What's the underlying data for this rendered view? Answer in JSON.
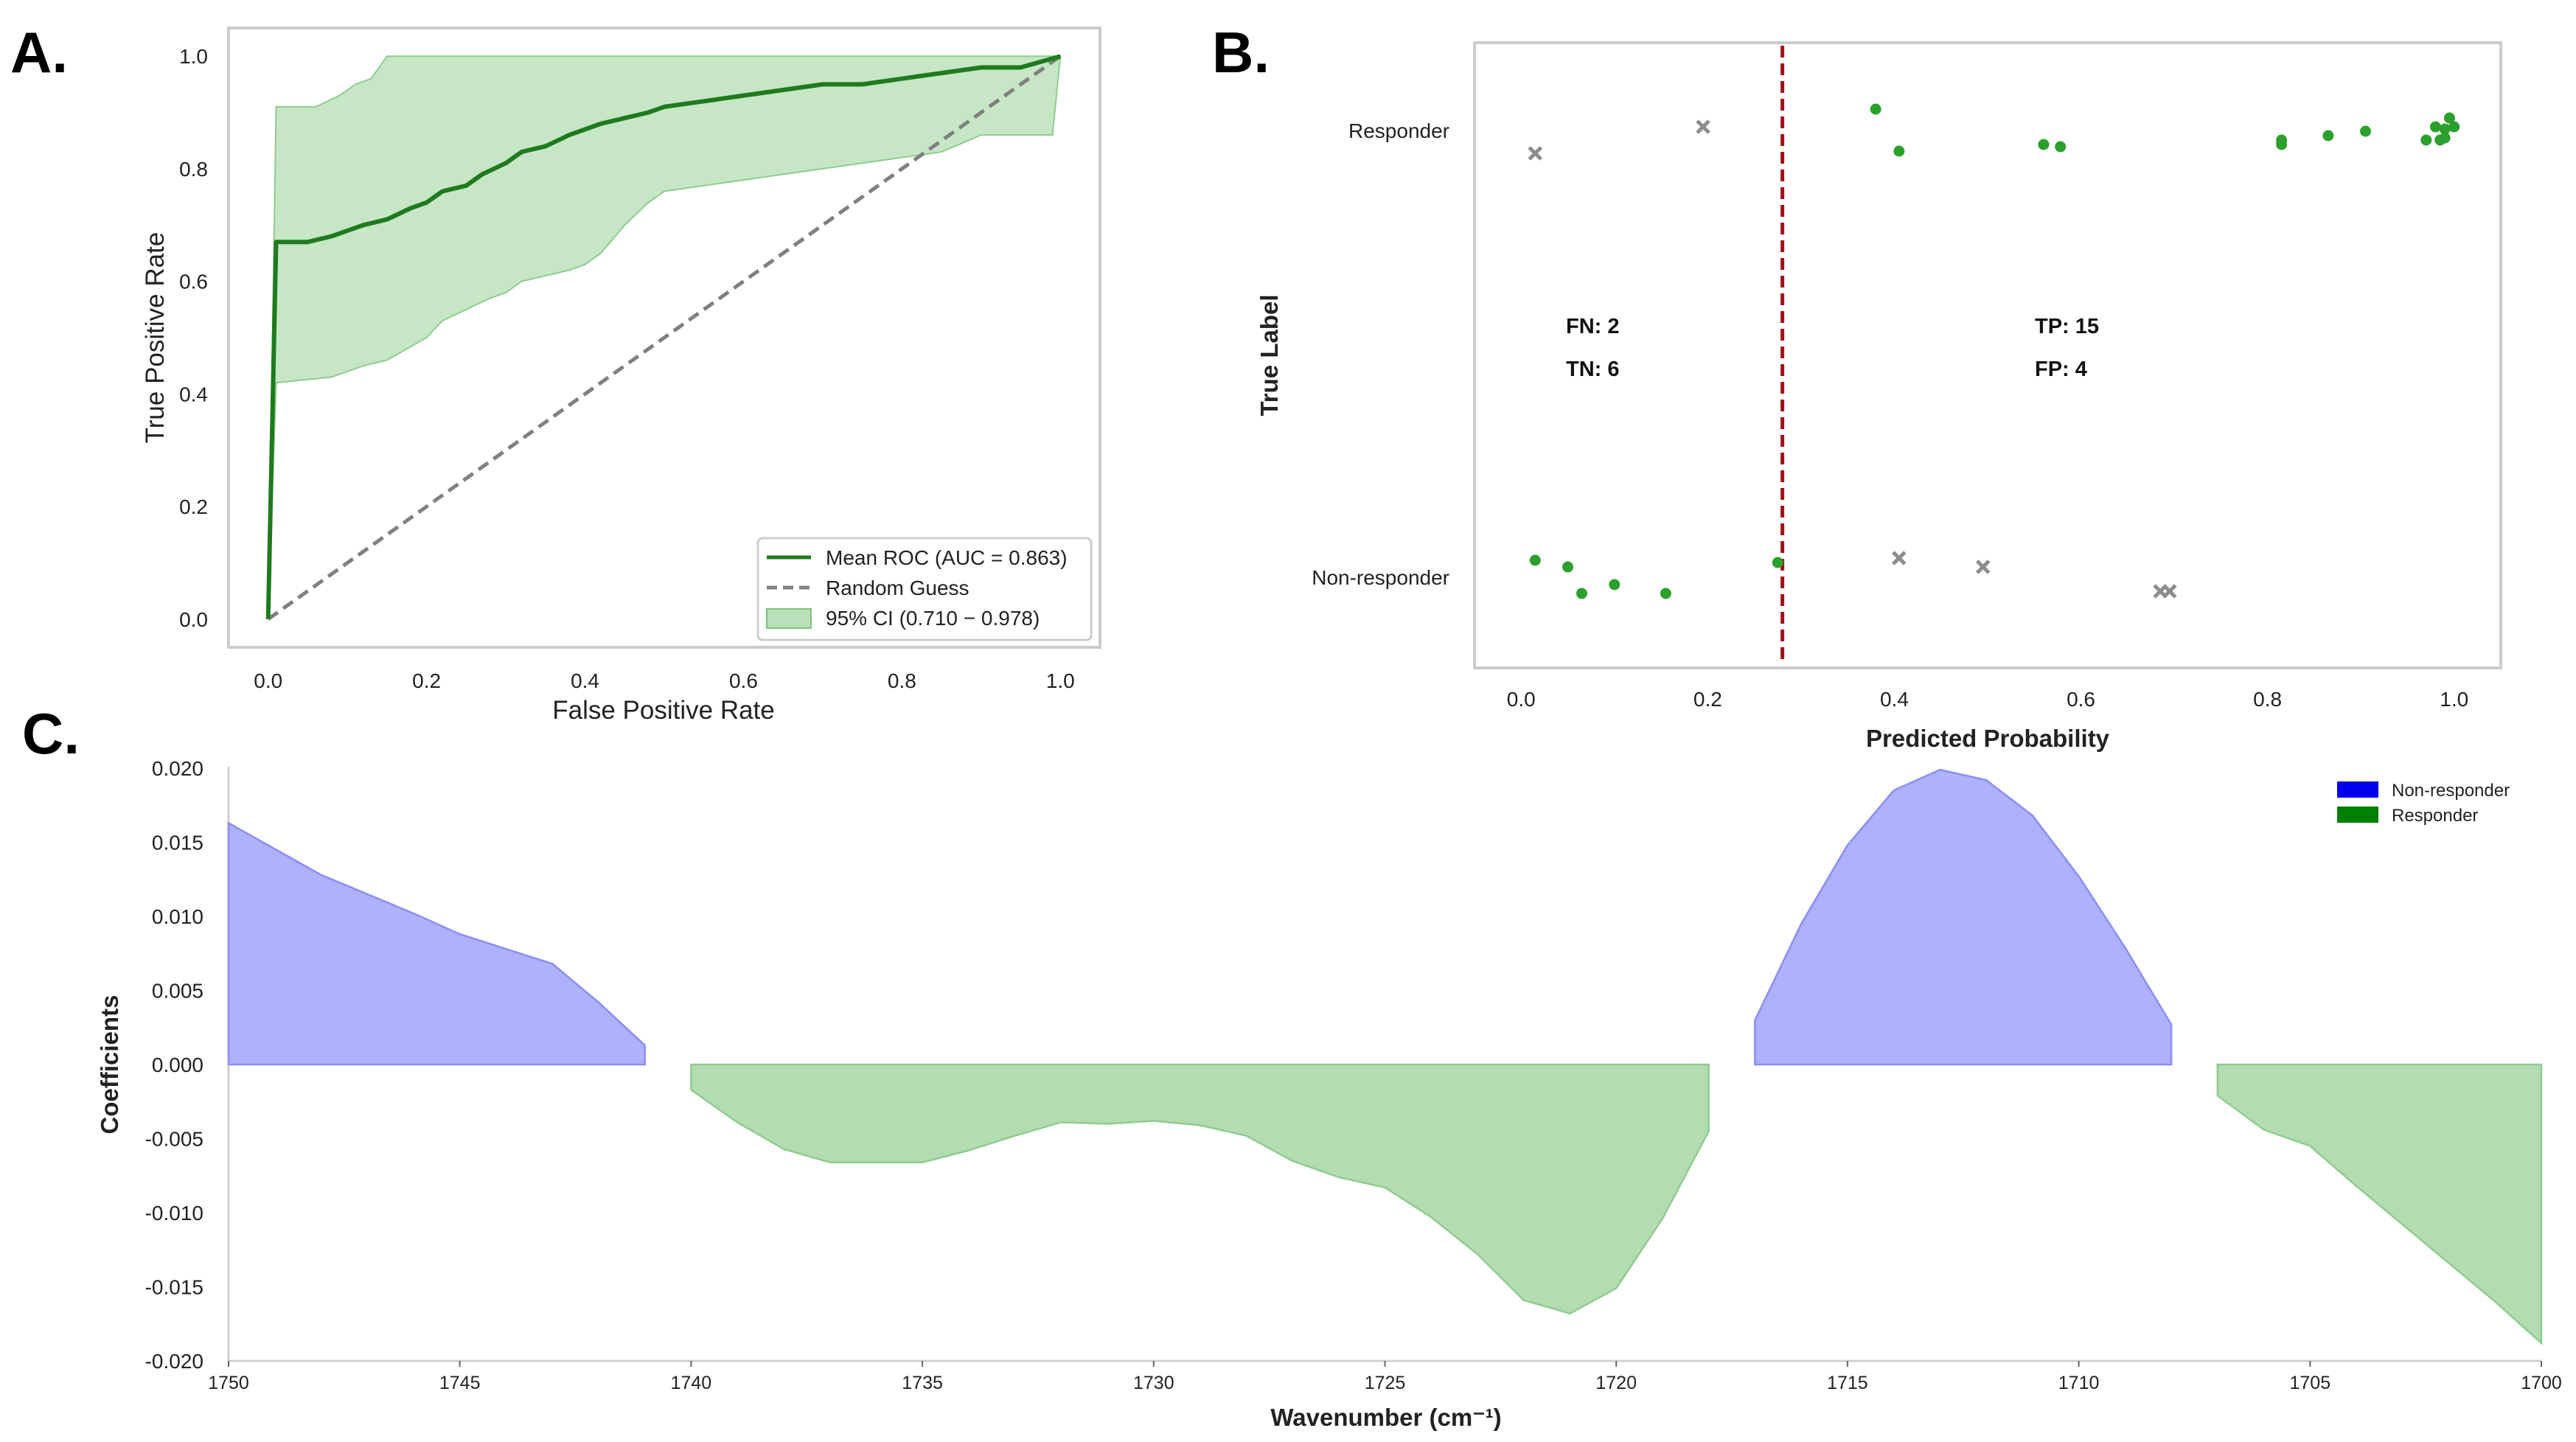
{
  "panel_labels": {
    "a": "A.",
    "b": "B.",
    "c": "C."
  },
  "colors": {
    "roc_line": "#1f7a1f",
    "ci_fill": "#a8d8a8",
    "random_line": "#808080",
    "point_green": "#2ca02c",
    "point_gray": "#8c8c8c",
    "threshold": "#a50f15",
    "non_responder_fill": "#aeb1fb",
    "non_responder_legend": "#0000ee",
    "responder_fill": "#b3dcb3",
    "responder_legend": "#008000"
  },
  "chart_data": [
    {
      "id": "A",
      "type": "line",
      "xlabel": "False Positive Rate",
      "ylabel": "True Positive Rate",
      "xlim": [
        -0.05,
        1.05
      ],
      "ylim": [
        -0.05,
        1.05
      ],
      "xticks": [
        "0.0",
        "0.2",
        "0.4",
        "0.6",
        "0.8",
        "1.0"
      ],
      "yticks": [
        "0.0",
        "0.2",
        "0.4",
        "0.6",
        "0.8",
        "1.0"
      ],
      "legend": {
        "mean_roc": "Mean ROC (AUC = 0.863)",
        "random": "Random Guess",
        "ci": "95% CI (0.710 − 0.978)"
      },
      "mean_roc": {
        "x": [
          0,
          0.01,
          0.02,
          0.05,
          0.08,
          0.1,
          0.12,
          0.15,
          0.18,
          0.2,
          0.22,
          0.25,
          0.27,
          0.3,
          0.32,
          0.35,
          0.38,
          0.4,
          0.42,
          0.45,
          0.48,
          0.5,
          0.55,
          0.6,
          0.65,
          0.7,
          0.75,
          0.8,
          0.85,
          0.9,
          0.95,
          1.0
        ],
        "y": [
          0,
          0.67,
          0.67,
          0.67,
          0.68,
          0.69,
          0.7,
          0.71,
          0.73,
          0.74,
          0.76,
          0.77,
          0.79,
          0.81,
          0.83,
          0.84,
          0.86,
          0.87,
          0.88,
          0.89,
          0.9,
          0.91,
          0.92,
          0.93,
          0.94,
          0.95,
          0.95,
          0.96,
          0.97,
          0.98,
          0.98,
          1.0
        ]
      },
      "ci_upper": {
        "x": [
          0,
          0.01,
          0.06,
          0.09,
          0.11,
          0.13,
          0.15,
          0.25,
          0.5,
          0.75,
          0.97,
          1.0
        ],
        "y": [
          0,
          0.91,
          0.91,
          0.93,
          0.95,
          0.96,
          1.0,
          1.0,
          1.0,
          1.0,
          1.0,
          1.0
        ]
      },
      "ci_lower": {
        "x": [
          0,
          0.01,
          0.08,
          0.12,
          0.15,
          0.2,
          0.22,
          0.25,
          0.28,
          0.3,
          0.32,
          0.35,
          0.38,
          0.4,
          0.42,
          0.45,
          0.48,
          0.5,
          0.55,
          0.6,
          0.65,
          0.7,
          0.75,
          0.8,
          0.85,
          0.9,
          0.95,
          0.99,
          1.0
        ],
        "y": [
          0,
          0.42,
          0.43,
          0.45,
          0.46,
          0.5,
          0.53,
          0.55,
          0.57,
          0.58,
          0.6,
          0.61,
          0.62,
          0.63,
          0.65,
          0.7,
          0.74,
          0.76,
          0.77,
          0.78,
          0.79,
          0.8,
          0.81,
          0.82,
          0.83,
          0.86,
          0.86,
          0.86,
          1.0
        ]
      },
      "random_guess": {
        "x": [
          0,
          1
        ],
        "y": [
          0,
          1
        ]
      }
    },
    {
      "id": "B",
      "type": "scatter",
      "xlabel": "Predicted Probability",
      "ylabel": "True Label",
      "xlim": [
        -0.05,
        1.05
      ],
      "xticks": [
        "0.0",
        "0.2",
        "0.4",
        "0.6",
        "0.8",
        "1.0"
      ],
      "categories": [
        "Non-responder",
        "Responder"
      ],
      "threshold": 0.28,
      "annotations": {
        "fn": "FN: 2",
        "tn": "TN: 6",
        "tp": "TP: 15",
        "fp": "FP: 4"
      },
      "responder_correct": [
        [
          0.38,
          0.1
        ],
        [
          0.405,
          -0.09
        ],
        [
          0.56,
          -0.06
        ],
        [
          0.578,
          -0.07
        ],
        [
          0.815,
          -0.04
        ],
        [
          0.815,
          -0.06
        ],
        [
          0.865,
          -0.02
        ],
        [
          0.905,
          0.0
        ],
        [
          0.97,
          -0.04
        ],
        [
          0.98,
          0.02
        ],
        [
          0.985,
          -0.04
        ],
        [
          0.99,
          0.01
        ],
        [
          0.99,
          -0.03
        ],
        [
          0.995,
          0.06
        ],
        [
          1.0,
          0.02
        ]
      ],
      "responder_wrong": [
        [
          0.015,
          -0.1
        ],
        [
          0.195,
          0.02
        ]
      ],
      "nonresponder_correct": [
        [
          0.015,
          0.08
        ],
        [
          0.05,
          0.05
        ],
        [
          0.065,
          -0.07
        ],
        [
          0.1,
          -0.03
        ],
        [
          0.155,
          -0.07
        ],
        [
          0.275,
          0.07
        ]
      ],
      "nonresponder_wrong": [
        [
          0.405,
          0.09
        ],
        [
          0.495,
          0.05
        ],
        [
          0.685,
          -0.06
        ],
        [
          0.695,
          -0.06
        ]
      ]
    },
    {
      "id": "C",
      "type": "area",
      "xlabel": "Wavenumber (cm⁻¹)",
      "ylabel": "Coefficients",
      "xlim": [
        1750,
        1700
      ],
      "ylim": [
        -0.02,
        0.02
      ],
      "xticks": [
        "1750",
        "1745",
        "1740",
        "1735",
        "1730",
        "1725",
        "1720",
        "1715",
        "1710",
        "1705",
        "1700"
      ],
      "yticks": [
        "0.020",
        "0.015",
        "0.010",
        "0.005",
        "0.000",
        "-0.005",
        "-0.010",
        "-0.015",
        "-0.020"
      ],
      "legend": [
        "Non-responder",
        "Responder"
      ],
      "segments": [
        {
          "group": "Non-responder",
          "x": [
            1750,
            1748,
            1746,
            1745,
            1744,
            1743,
            1742,
            1741
          ],
          "y": [
            0.0163,
            0.0128,
            0.0102,
            0.0088,
            0.0078,
            0.0068,
            0.0042,
            0.0013
          ]
        },
        {
          "group": "Responder",
          "x": [
            1740,
            1739,
            1738,
            1737,
            1736,
            1735,
            1734,
            1733,
            1732,
            1731,
            1730,
            1729,
            1728,
            1727,
            1726,
            1725,
            1724,
            1723,
            1722,
            1721,
            1720,
            1719,
            1718
          ],
          "y": [
            -0.0017,
            -0.0039,
            -0.0057,
            -0.0066,
            -0.0066,
            -0.0066,
            -0.0058,
            -0.0048,
            -0.0039,
            -0.004,
            -0.0038,
            -0.0041,
            -0.0048,
            -0.0065,
            -0.0076,
            -0.0083,
            -0.0103,
            -0.0128,
            -0.0159,
            -0.0168,
            -0.0151,
            -0.0104,
            -0.0045
          ]
        },
        {
          "group": "Non-responder",
          "x": [
            1717,
            1716,
            1715,
            1714,
            1713,
            1712,
            1711,
            1710,
            1709,
            1708
          ],
          "y": [
            0.003,
            0.0095,
            0.0148,
            0.0185,
            0.0199,
            0.0192,
            0.0168,
            0.0127,
            0.0079,
            0.0027
          ]
        },
        {
          "group": "Responder",
          "x": [
            1707,
            1706,
            1705,
            1704,
            1703,
            1702,
            1701,
            1700
          ],
          "y": [
            -0.0021,
            -0.0044,
            -0.0055,
            -0.0082,
            -0.0108,
            -0.0134,
            -0.016,
            -0.0188
          ]
        }
      ]
    }
  ]
}
